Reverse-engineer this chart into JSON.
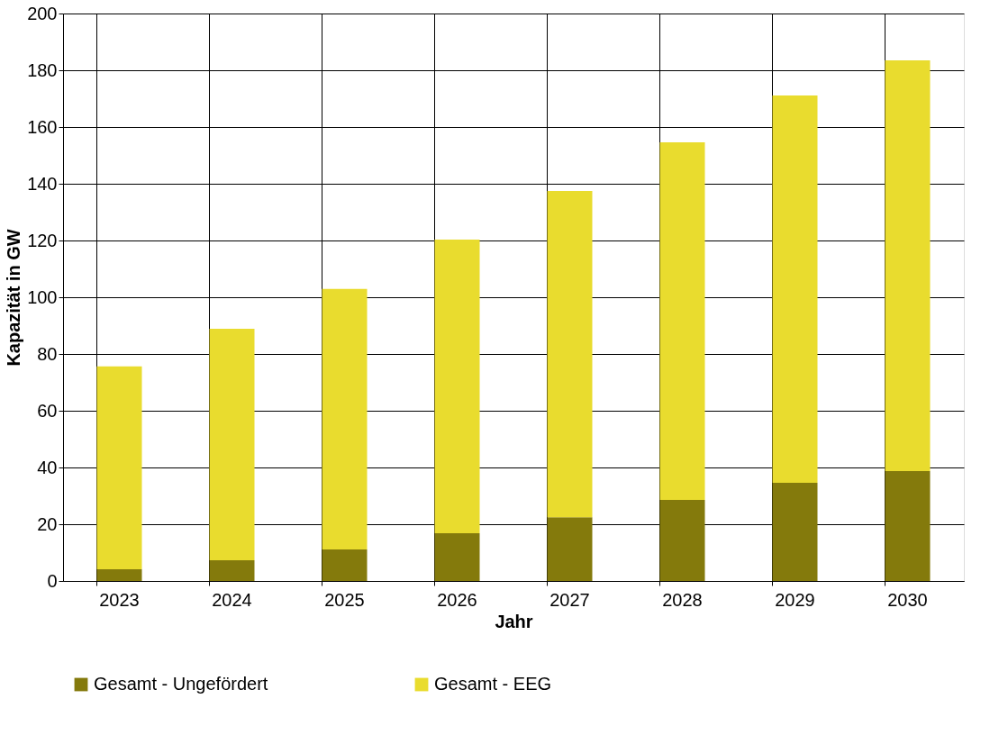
{
  "chart_data": {
    "type": "bar",
    "stacked": true,
    "xlabel": "Jahr",
    "ylabel": "Kapazität in GW",
    "categories": [
      "2023",
      "2024",
      "2025",
      "2026",
      "2027",
      "2028",
      "2029",
      "2030"
    ],
    "series": [
      {
        "name": "Gesamt - Ungefördert",
        "color": "#847a0c",
        "values": [
          4.1,
          7.3,
          11.1,
          16.8,
          22.5,
          28.6,
          34.6,
          38.7
        ]
      },
      {
        "name": "Gesamt - EEG",
        "color": "#e9dc2e",
        "values": [
          71.5,
          81.6,
          91.8,
          103.5,
          115.0,
          126.0,
          136.5,
          144.8
        ]
      }
    ],
    "ylim": [
      0,
      200
    ],
    "yticks": [
      0,
      20,
      40,
      60,
      80,
      100,
      120,
      140,
      160,
      180,
      200
    ],
    "grid": true,
    "legend": "bottom"
  }
}
